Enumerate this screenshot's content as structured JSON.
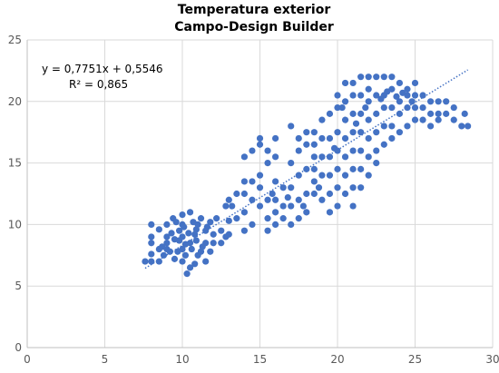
{
  "chart_data": {
    "type": "scatter",
    "title": [
      "Temperatura exterior",
      "Campo-Design Builder"
    ],
    "xlabel": "",
    "ylabel": "",
    "xlim": [
      0,
      30
    ],
    "ylim": [
      0,
      25
    ],
    "xticks": [
      0,
      5,
      10,
      15,
      20,
      25,
      30
    ],
    "yticks": [
      0,
      5,
      10,
      15,
      20,
      25
    ],
    "grid": true,
    "legend": "none",
    "marker_color": "#4472C4",
    "trendline": {
      "type": "linear",
      "slope": 0.7751,
      "intercept": 0.5546,
      "x_range": [
        7.6,
        28.4
      ],
      "color": "#4472C4",
      "style": "dotted",
      "equation": "y = 0,7751x + 0,5546",
      "r_squared": "R² = 0,865"
    },
    "series": [
      {
        "points": [
          [
            7.6,
            7.0
          ],
          [
            8.0,
            7.0
          ],
          [
            8.5,
            7.0
          ],
          [
            8.0,
            7.6
          ],
          [
            8.5,
            8.0
          ],
          [
            8.0,
            8.5
          ],
          [
            9.0,
            8.5
          ],
          [
            8.0,
            9.0
          ],
          [
            9.0,
            9.0
          ],
          [
            8.0,
            10.0
          ],
          [
            8.5,
            9.6
          ],
          [
            9.0,
            10.0
          ],
          [
            9.4,
            10.5
          ],
          [
            9.0,
            8.0
          ],
          [
            9.5,
            7.2
          ],
          [
            8.8,
            7.5
          ],
          [
            9.2,
            7.8
          ],
          [
            8.7,
            8.2
          ],
          [
            9.5,
            8.8
          ],
          [
            9.8,
            9.5
          ],
          [
            10.0,
            10.0
          ],
          [
            10.0,
            10.8
          ],
          [
            10.5,
            11.0
          ],
          [
            10.0,
            9.0
          ],
          [
            10.0,
            8.0
          ],
          [
            10.2,
            7.5
          ],
          [
            10.0,
            7.0
          ],
          [
            10.5,
            6.5
          ],
          [
            10.3,
            6.0
          ],
          [
            10.8,
            6.8
          ],
          [
            11.0,
            7.5
          ],
          [
            10.5,
            8.5
          ],
          [
            10.8,
            9.2
          ],
          [
            11.0,
            10.0
          ],
          [
            11.2,
            10.5
          ],
          [
            10.7,
            10.2
          ],
          [
            11.5,
            9.5
          ],
          [
            11.5,
            8.5
          ],
          [
            11.2,
            7.8
          ],
          [
            11.5,
            7.0
          ],
          [
            11.8,
            7.8
          ],
          [
            12.0,
            8.5
          ],
          [
            12.0,
            9.2
          ],
          [
            11.8,
            10.2
          ],
          [
            12.2,
            10.5
          ],
          [
            12.5,
            9.5
          ],
          [
            12.5,
            8.5
          ],
          [
            12.8,
            9.0
          ],
          [
            9.7,
            7.8
          ],
          [
            10.2,
            8.4
          ],
          [
            10.6,
            8.0
          ],
          [
            10.9,
            8.7
          ],
          [
            9.8,
            8.7
          ],
          [
            10.4,
            9.3
          ],
          [
            11.3,
            8.2
          ],
          [
            10.1,
            9.8
          ],
          [
            11.6,
            9.8
          ],
          [
            9.3,
            9.3
          ],
          [
            9.6,
            10.2
          ],
          [
            10.9,
            9.6
          ],
          [
            13.0,
            9.2
          ],
          [
            13.0,
            10.3
          ],
          [
            13.2,
            11.5
          ],
          [
            13.5,
            10.5
          ],
          [
            13.0,
            12.0
          ],
          [
            12.8,
            11.5
          ],
          [
            13.5,
            12.5
          ],
          [
            14.0,
            11.0
          ],
          [
            14.0,
            12.5
          ],
          [
            14.5,
            12.0
          ],
          [
            14.5,
            13.5
          ],
          [
            14.0,
            13.5
          ],
          [
            15.0,
            13.0
          ],
          [
            14.5,
            10.0
          ],
          [
            14.0,
            9.5
          ],
          [
            15.0,
            11.5
          ],
          [
            15.5,
            12.0
          ],
          [
            15.0,
            14.0
          ],
          [
            15.5,
            15.0
          ],
          [
            15.5,
            16.0
          ],
          [
            15.0,
            16.5
          ],
          [
            14.5,
            16.0
          ],
          [
            14.0,
            15.5
          ],
          [
            15.0,
            17.0
          ],
          [
            16.0,
            17.0
          ],
          [
            16.0,
            15.5
          ],
          [
            16.0,
            13.5
          ],
          [
            16.0,
            12.0
          ],
          [
            16.5,
            11.5
          ],
          [
            16.5,
            13.0
          ],
          [
            16.0,
            11.0
          ],
          [
            15.5,
            10.5
          ],
          [
            15.5,
            9.5
          ],
          [
            16.0,
            10.0
          ],
          [
            16.5,
            10.5
          ],
          [
            17.0,
            10.0
          ],
          [
            17.0,
            11.5
          ],
          [
            17.0,
            13.0
          ],
          [
            17.5,
            14.0
          ],
          [
            17.0,
            15.0
          ],
          [
            17.5,
            16.0
          ],
          [
            17.5,
            17.0
          ],
          [
            17.0,
            18.0
          ],
          [
            17.5,
            12.0
          ],
          [
            17.5,
            10.5
          ],
          [
            18.0,
            11.0
          ],
          [
            18.0,
            12.5
          ],
          [
            18.0,
            14.5
          ],
          [
            18.0,
            16.5
          ],
          [
            18.0,
            17.5
          ],
          [
            18.5,
            17.5
          ],
          [
            18.5,
            16.5
          ],
          [
            18.5,
            15.5
          ],
          [
            18.5,
            14.5
          ],
          [
            18.5,
            13.5
          ],
          [
            18.5,
            12.5
          ],
          [
            19.0,
            12.0
          ],
          [
            19.0,
            14.0
          ],
          [
            19.0,
            15.5
          ],
          [
            19.0,
            17.0
          ],
          [
            19.0,
            18.5
          ],
          [
            19.5,
            19.0
          ],
          [
            19.5,
            17.0
          ],
          [
            19.5,
            15.5
          ],
          [
            19.5,
            14.0
          ],
          [
            19.5,
            12.5
          ],
          [
            19.5,
            11.0
          ],
          [
            20.0,
            11.5
          ],
          [
            20.0,
            13.0
          ],
          [
            20.0,
            14.5
          ],
          [
            20.0,
            16.0
          ],
          [
            20.0,
            17.5
          ],
          [
            20.0,
            19.5
          ],
          [
            20.0,
            20.5
          ],
          [
            20.5,
            21.5
          ],
          [
            20.5,
            20.0
          ],
          [
            20.5,
            18.5
          ],
          [
            20.5,
            17.0
          ],
          [
            20.5,
            15.5
          ],
          [
            20.5,
            14.0
          ],
          [
            20.5,
            12.5
          ],
          [
            21.0,
            11.5
          ],
          [
            21.0,
            13.0
          ],
          [
            21.0,
            14.5
          ],
          [
            21.0,
            16.0
          ],
          [
            21.0,
            17.5
          ],
          [
            21.0,
            19.0
          ],
          [
            21.0,
            20.5
          ],
          [
            21.0,
            21.5
          ],
          [
            21.5,
            22.0
          ],
          [
            21.5,
            20.5
          ],
          [
            21.5,
            19.0
          ],
          [
            21.5,
            17.5
          ],
          [
            21.5,
            16.0
          ],
          [
            21.5,
            14.5
          ],
          [
            21.5,
            13.0
          ],
          [
            22.0,
            14.0
          ],
          [
            22.0,
            15.5
          ],
          [
            22.0,
            17.0
          ],
          [
            22.0,
            18.5
          ],
          [
            22.0,
            20.0
          ],
          [
            22.0,
            21.0
          ],
          [
            22.0,
            22.0
          ],
          [
            22.5,
            22.0
          ],
          [
            23.0,
            22.0
          ],
          [
            23.5,
            22.0
          ],
          [
            24.0,
            21.5
          ],
          [
            24.5,
            21.0
          ],
          [
            22.5,
            20.5
          ],
          [
            22.5,
            19.0
          ],
          [
            22.5,
            17.5
          ],
          [
            22.5,
            16.0
          ],
          [
            22.5,
            15.0
          ],
          [
            23.0,
            16.5
          ],
          [
            23.0,
            18.0
          ],
          [
            23.0,
            19.5
          ],
          [
            23.0,
            20.5
          ],
          [
            23.5,
            21.0
          ],
          [
            23.5,
            19.5
          ],
          [
            23.5,
            18.0
          ],
          [
            23.5,
            17.0
          ],
          [
            24.0,
            17.5
          ],
          [
            24.0,
            19.0
          ],
          [
            24.0,
            20.0
          ],
          [
            24.5,
            20.5
          ],
          [
            24.5,
            19.5
          ],
          [
            24.5,
            18.0
          ],
          [
            25.0,
            18.5
          ],
          [
            25.0,
            19.5
          ],
          [
            25.0,
            20.5
          ],
          [
            25.0,
            21.5
          ],
          [
            25.5,
            20.5
          ],
          [
            25.5,
            19.5
          ],
          [
            25.5,
            18.5
          ],
          [
            26.0,
            18.0
          ],
          [
            26.0,
            19.0
          ],
          [
            26.0,
            20.0
          ],
          [
            26.5,
            20.0
          ],
          [
            26.5,
            19.0
          ],
          [
            26.5,
            18.5
          ],
          [
            27.0,
            19.0
          ],
          [
            27.0,
            20.0
          ],
          [
            27.5,
            19.5
          ],
          [
            27.5,
            18.5
          ],
          [
            28.0,
            18.0
          ],
          [
            28.2,
            19.0
          ],
          [
            28.4,
            18.0
          ],
          [
            20.3,
            19.5
          ],
          [
            21.8,
            19.5
          ],
          [
            23.2,
            20.8
          ],
          [
            24.2,
            20.7
          ],
          [
            22.8,
            20.2
          ],
          [
            23.8,
            20.4
          ],
          [
            24.8,
            20.0
          ],
          [
            21.2,
            18.2
          ],
          [
            19.8,
            16.2
          ],
          [
            18.8,
            13.0
          ],
          [
            17.8,
            11.5
          ],
          [
            16.8,
            12.2
          ],
          [
            15.8,
            12.5
          ]
        ]
      }
    ]
  }
}
